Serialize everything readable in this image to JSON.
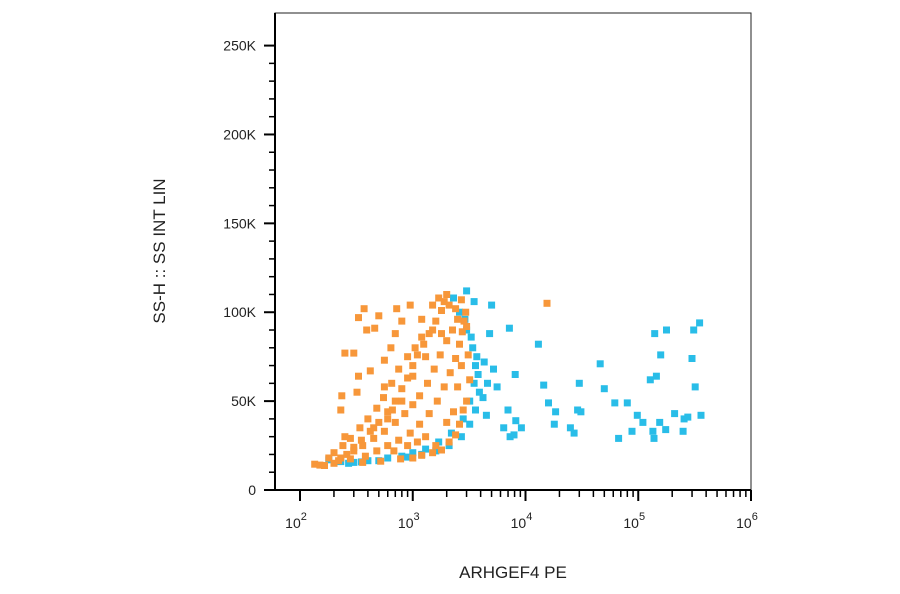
{
  "chart_data": {
    "type": "scatter",
    "xlabel": "ARHGEF4 PE",
    "ylabel": "SS-H :: SS INT LIN",
    "x_scale": "log",
    "xlim": [
      60,
      1000000
    ],
    "ylim": [
      0,
      262144
    ],
    "x_ticks": [
      {
        "value": 100,
        "label": "10",
        "exp": "2"
      },
      {
        "value": 1000,
        "label": "10",
        "exp": "3"
      },
      {
        "value": 10000,
        "label": "10",
        "exp": "4"
      },
      {
        "value": 100000,
        "label": "10",
        "exp": "5"
      },
      {
        "value": 1000000,
        "label": "10",
        "exp": "6"
      }
    ],
    "y_ticks": [
      {
        "value": 0,
        "label": "0"
      },
      {
        "value": 50000,
        "label": "50K"
      },
      {
        "value": 100000,
        "label": "100K"
      },
      {
        "value": 150000,
        "label": "150K"
      },
      {
        "value": 200000,
        "label": "200K"
      },
      {
        "value": 250000,
        "label": "250K"
      }
    ],
    "grid": false,
    "series": [
      {
        "color": "#29bde8",
        "points": [
          [
            180,
            17000
          ],
          [
            230,
            16000
          ],
          [
            300,
            15500
          ],
          [
            400,
            16500
          ],
          [
            600,
            18000
          ],
          [
            800,
            19000
          ],
          [
            1000,
            21000
          ],
          [
            1300,
            23000
          ],
          [
            1700,
            27000
          ],
          [
            2200,
            32000
          ],
          [
            2800,
            40000
          ],
          [
            3200,
            50000
          ],
          [
            3500,
            60000
          ],
          [
            3600,
            70000
          ],
          [
            3400,
            80000
          ],
          [
            3000,
            90000
          ],
          [
            2600,
            100000
          ],
          [
            2300,
            108000
          ],
          [
            3000,
            112000
          ],
          [
            3500,
            106000
          ],
          [
            2900,
            96000
          ],
          [
            3300,
            86000
          ],
          [
            3700,
            75000
          ],
          [
            3800,
            65000
          ],
          [
            3900,
            55000
          ],
          [
            3600,
            45000
          ],
          [
            3200,
            37000
          ],
          [
            2700,
            30000
          ],
          [
            2100,
            25000
          ],
          [
            1600,
            22000
          ],
          [
            1200,
            20000
          ],
          [
            900,
            18500
          ],
          [
            500,
            16500
          ],
          [
            350,
            15800
          ],
          [
            270,
            15000
          ],
          [
            4200,
            52000
          ],
          [
            4500,
            42000
          ],
          [
            4600,
            60000
          ],
          [
            4300,
            72000
          ],
          [
            4800,
            88000
          ],
          [
            5200,
            68000
          ],
          [
            5000,
            104000
          ],
          [
            5600,
            58000
          ],
          [
            6400,
            35000
          ],
          [
            7000,
            45000
          ],
          [
            7300,
            30000
          ],
          [
            7900,
            31000
          ],
          [
            8200,
            39000
          ],
          [
            9200,
            35000
          ],
          [
            8100,
            65000
          ],
          [
            7200,
            91000
          ],
          [
            13000,
            82000
          ],
          [
            14500,
            59000
          ],
          [
            16000,
            49000
          ],
          [
            18000,
            37000
          ],
          [
            18500,
            44000
          ],
          [
            25000,
            35000
          ],
          [
            27000,
            32000
          ],
          [
            30000,
            60000
          ],
          [
            31000,
            44000
          ],
          [
            29000,
            45000
          ],
          [
            46000,
            71000
          ],
          [
            50000,
            57000
          ],
          [
            62000,
            49000
          ],
          [
            67000,
            29000
          ],
          [
            80000,
            49000
          ],
          [
            88000,
            33000
          ],
          [
            98000,
            42000
          ],
          [
            110000,
            38000
          ],
          [
            128000,
            62000
          ],
          [
            135000,
            33000
          ],
          [
            138000,
            29000
          ],
          [
            140000,
            88000
          ],
          [
            145000,
            64000
          ],
          [
            158000,
            76000
          ],
          [
            155000,
            38000
          ],
          [
            175000,
            34000
          ],
          [
            178000,
            90000
          ],
          [
            210000,
            43000
          ],
          [
            250000,
            33000
          ],
          [
            255000,
            40000
          ],
          [
            275000,
            41000
          ],
          [
            300000,
            74000
          ],
          [
            310000,
            90000
          ],
          [
            320000,
            58000
          ],
          [
            350000,
            94000
          ],
          [
            360000,
            42000
          ]
        ]
      },
      {
        "color": "#f7973a",
        "points": [
          [
            135,
            14500
          ],
          [
            150,
            14000
          ],
          [
            165,
            13800
          ],
          [
            200,
            15000
          ],
          [
            230,
            18000
          ],
          [
            260,
            20000
          ],
          [
            300,
            24000
          ],
          [
            350,
            28000
          ],
          [
            420,
            33000
          ],
          [
            500,
            38000
          ],
          [
            600,
            44000
          ],
          [
            700,
            50000
          ],
          [
            800,
            57000
          ],
          [
            900,
            63000
          ],
          [
            1000,
            70000
          ],
          [
            1100,
            76000
          ],
          [
            1250,
            82000
          ],
          [
            1400,
            88000
          ],
          [
            1600,
            95000
          ],
          [
            1800,
            101000
          ],
          [
            1900,
            106000
          ],
          [
            2000,
            110000
          ],
          [
            1500,
            90000
          ],
          [
            1200,
            86000
          ],
          [
            1050,
            80000
          ],
          [
            900,
            75000
          ],
          [
            750,
            68000
          ],
          [
            650,
            60000
          ],
          [
            550,
            52000
          ],
          [
            480,
            46000
          ],
          [
            400,
            40000
          ],
          [
            340,
            35000
          ],
          [
            280,
            29000
          ],
          [
            240,
            25000
          ],
          [
            200,
            21000
          ],
          [
            180,
            18000
          ],
          [
            220,
            16500
          ],
          [
            280,
            17500
          ],
          [
            380,
            19000
          ],
          [
            480,
            22000
          ],
          [
            600,
            25000
          ],
          [
            750,
            28000
          ],
          [
            950,
            32000
          ],
          [
            1150,
            37000
          ],
          [
            1400,
            43000
          ],
          [
            1650,
            50000
          ],
          [
            1900,
            58000
          ],
          [
            2150,
            66000
          ],
          [
            2400,
            74000
          ],
          [
            2600,
            82000
          ],
          [
            2750,
            89000
          ],
          [
            2850,
            95000
          ],
          [
            2950,
            100000
          ],
          [
            2500,
            96000
          ],
          [
            2250,
            90000
          ],
          [
            2000,
            84000
          ],
          [
            1750,
            76000
          ],
          [
            1550,
            68000
          ],
          [
            1350,
            60000
          ],
          [
            1150,
            53000
          ],
          [
            1000,
            48000
          ],
          [
            850,
            43000
          ],
          [
            700,
            38000
          ],
          [
            560,
            33000
          ],
          [
            450,
            29000
          ],
          [
            360,
            25000
          ],
          [
            300,
            22000
          ],
          [
            250,
            30000
          ],
          [
            230,
            45000
          ],
          [
            235,
            53000
          ],
          [
            250,
            77000
          ],
          [
            300,
            77000
          ],
          [
            320,
            55000
          ],
          [
            330,
            64000
          ],
          [
            390,
            90000
          ],
          [
            330,
            97000
          ],
          [
            370,
            102000
          ],
          [
            460,
            91000
          ],
          [
            500,
            98000
          ],
          [
            420,
            67000
          ],
          [
            560,
            73000
          ],
          [
            640,
            80000
          ],
          [
            700,
            88000
          ],
          [
            800,
            95000
          ],
          [
            720,
            102000
          ],
          [
            950,
            104000
          ],
          [
            1200,
            96000
          ],
          [
            1500,
            104000
          ],
          [
            1700,
            108000
          ],
          [
            2100,
            104000
          ],
          [
            2400,
            102000
          ],
          [
            2700,
            107000
          ],
          [
            3000,
            92000
          ],
          [
            3100,
            76000
          ],
          [
            3200,
            62000
          ],
          [
            3000,
            50000
          ],
          [
            2800,
            45000
          ],
          [
            2600,
            37000
          ],
          [
            2400,
            31000
          ],
          [
            2100,
            27000
          ],
          [
            1800,
            22500
          ],
          [
            1500,
            21000
          ],
          [
            1200,
            19500
          ],
          [
            1000,
            18000
          ],
          [
            780,
            17500
          ],
          [
            520,
            16200
          ],
          [
            360,
            15500
          ],
          [
            2000,
            38000
          ],
          [
            2300,
            44000
          ],
          [
            1300,
            30000
          ],
          [
            1100,
            27000
          ],
          [
            900,
            25000
          ],
          [
            680,
            22000
          ],
          [
            1600,
            25000
          ],
          [
            2500,
            58000
          ],
          [
            2700,
            70000
          ],
          [
            1800,
            88000
          ],
          [
            1300,
            75000
          ],
          [
            1000,
            64000
          ],
          [
            800,
            50000
          ],
          [
            600,
            40000
          ],
          [
            450,
            35000
          ],
          [
            560,
            58000
          ],
          [
            660,
            45000
          ],
          [
            15500,
            105000
          ]
        ]
      }
    ]
  }
}
